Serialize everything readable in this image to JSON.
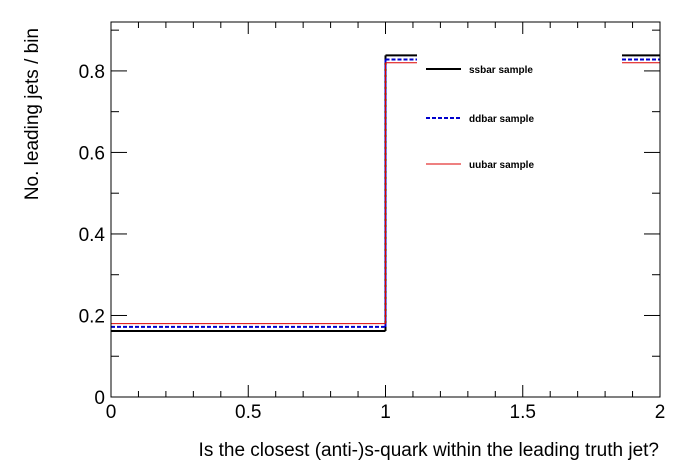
{
  "chart_data": {
    "type": "line",
    "style": "step-histogram",
    "title": "",
    "xlabel": "Is the closest (anti-)s-quark within the leading truth jet?",
    "ylabel": "No. leading jets / bin",
    "xlim": [
      0,
      2
    ],
    "ylim": [
      0,
      0.92
    ],
    "bin_edges": [
      0,
      1,
      2
    ],
    "x_ticks": [
      {
        "value": 0,
        "label": "0"
      },
      {
        "value": 0.5,
        "label": "0.5"
      },
      {
        "value": 1,
        "label": "1"
      },
      {
        "value": 1.5,
        "label": "1.5"
      },
      {
        "value": 2,
        "label": "2"
      }
    ],
    "y_ticks": [
      {
        "value": 0,
        "label": "0"
      },
      {
        "value": 0.2,
        "label": "0.2"
      },
      {
        "value": 0.4,
        "label": "0.4"
      },
      {
        "value": 0.6,
        "label": "0.6"
      },
      {
        "value": 0.8,
        "label": "0.8"
      }
    ],
    "grid": false,
    "legend_position": "top-right",
    "series": [
      {
        "name": "ssbar sample",
        "values": [
          0.162,
          0.838
        ],
        "color": "#000000",
        "dash": "solid"
      },
      {
        "name": "ddbar sample",
        "values": [
          0.172,
          0.828
        ],
        "color": "#0000cc",
        "dash": "dashed"
      },
      {
        "name": "uubar sample",
        "values": [
          0.18,
          0.82
        ],
        "color": "#dd0000",
        "dash": "solid"
      }
    ]
  }
}
